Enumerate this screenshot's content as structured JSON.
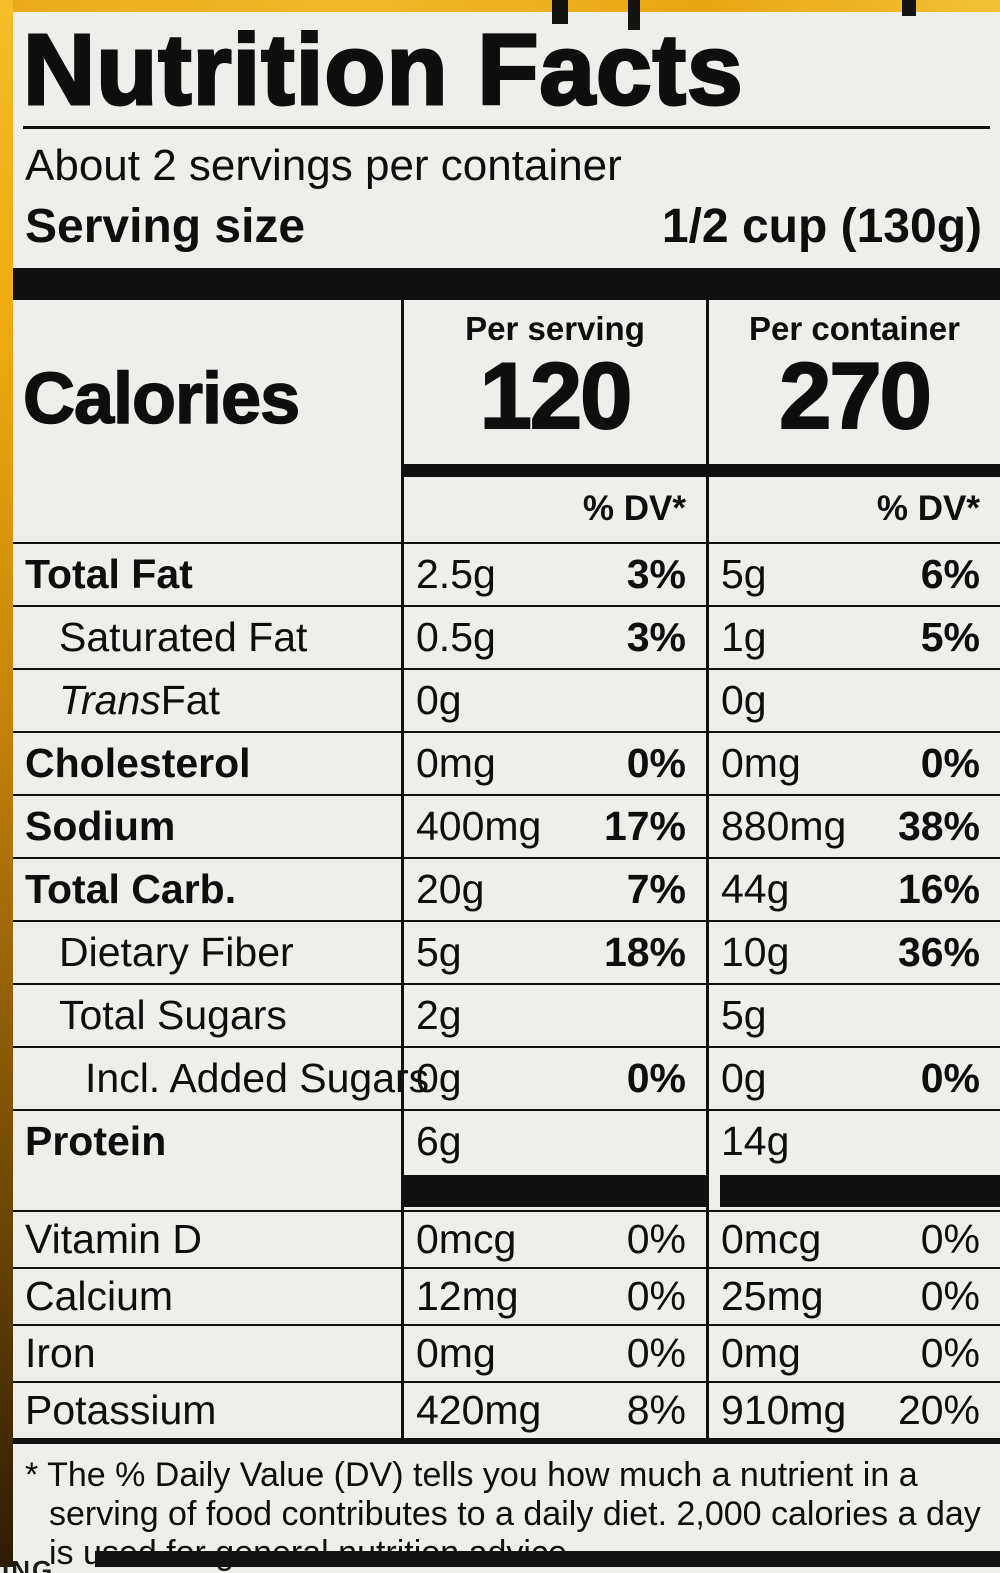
{
  "label": {
    "title": "Nutrition Facts",
    "servings_per_container": "About 2 servings per container",
    "serving_size_label": "Serving size",
    "serving_size_value": "1/2 cup (130g)",
    "calories_label": "Calories",
    "columns": [
      {
        "header": "Per serving",
        "calories": "120",
        "dv_header": "% DV*"
      },
      {
        "header": "Per container",
        "calories": "270",
        "dv_header": "% DV*"
      }
    ],
    "rows": [
      {
        "name": "Total Fat",
        "serving_amount": "2.5g",
        "serving_dv": "3%",
        "container_amount": "5g",
        "container_dv": "6%"
      },
      {
        "name": "Saturated Fat",
        "serving_amount": "0.5g",
        "serving_dv": "3%",
        "container_amount": "1g",
        "container_dv": "5%"
      },
      {
        "name_italic": "Trans",
        "name_rest": " Fat",
        "serving_amount": "0g",
        "serving_dv": "",
        "container_amount": "0g",
        "container_dv": ""
      },
      {
        "name": "Cholesterol",
        "serving_amount": "0mg",
        "serving_dv": "0%",
        "container_amount": "0mg",
        "container_dv": "0%"
      },
      {
        "name": "Sodium",
        "serving_amount": "400mg",
        "serving_dv": "17%",
        "container_amount": "880mg",
        "container_dv": "38%"
      },
      {
        "name": "Total Carb.",
        "serving_amount": "20g",
        "serving_dv": "7%",
        "container_amount": "44g",
        "container_dv": "16%"
      },
      {
        "name": "Dietary Fiber",
        "serving_amount": "5g",
        "serving_dv": "18%",
        "container_amount": "10g",
        "container_dv": "36%"
      },
      {
        "name": "Total Sugars",
        "serving_amount": "2g",
        "serving_dv": "",
        "container_amount": "5g",
        "container_dv": ""
      },
      {
        "name": "Incl. Added Sugars",
        "serving_amount": "0g",
        "serving_dv": "0%",
        "container_amount": "0g",
        "container_dv": "0%"
      },
      {
        "name": "Protein",
        "serving_amount": "6g",
        "serving_dv": "",
        "container_amount": "14g",
        "container_dv": ""
      }
    ],
    "vitamins": [
      {
        "name": "Vitamin D",
        "serving_amount": "0mcg",
        "serving_dv": "0%",
        "container_amount": "0mcg",
        "container_dv": "0%"
      },
      {
        "name": "Calcium",
        "serving_amount": "12mg",
        "serving_dv": "0%",
        "container_amount": "25mg",
        "container_dv": "0%"
      },
      {
        "name": "Iron",
        "serving_amount": "0mg",
        "serving_dv": "0%",
        "container_amount": "0mg",
        "container_dv": "0%"
      },
      {
        "name": "Potassium",
        "serving_amount": "420mg",
        "serving_dv": "8%",
        "container_amount": "910mg",
        "container_dv": "20%"
      }
    ],
    "footnote": "* The % Daily Value (DV) tells you how much a nutrient in a serving of food contributes to a daily diet. 2,000 calories a day is used for general nutrition advice.",
    "bottom_fragment": "ING"
  }
}
